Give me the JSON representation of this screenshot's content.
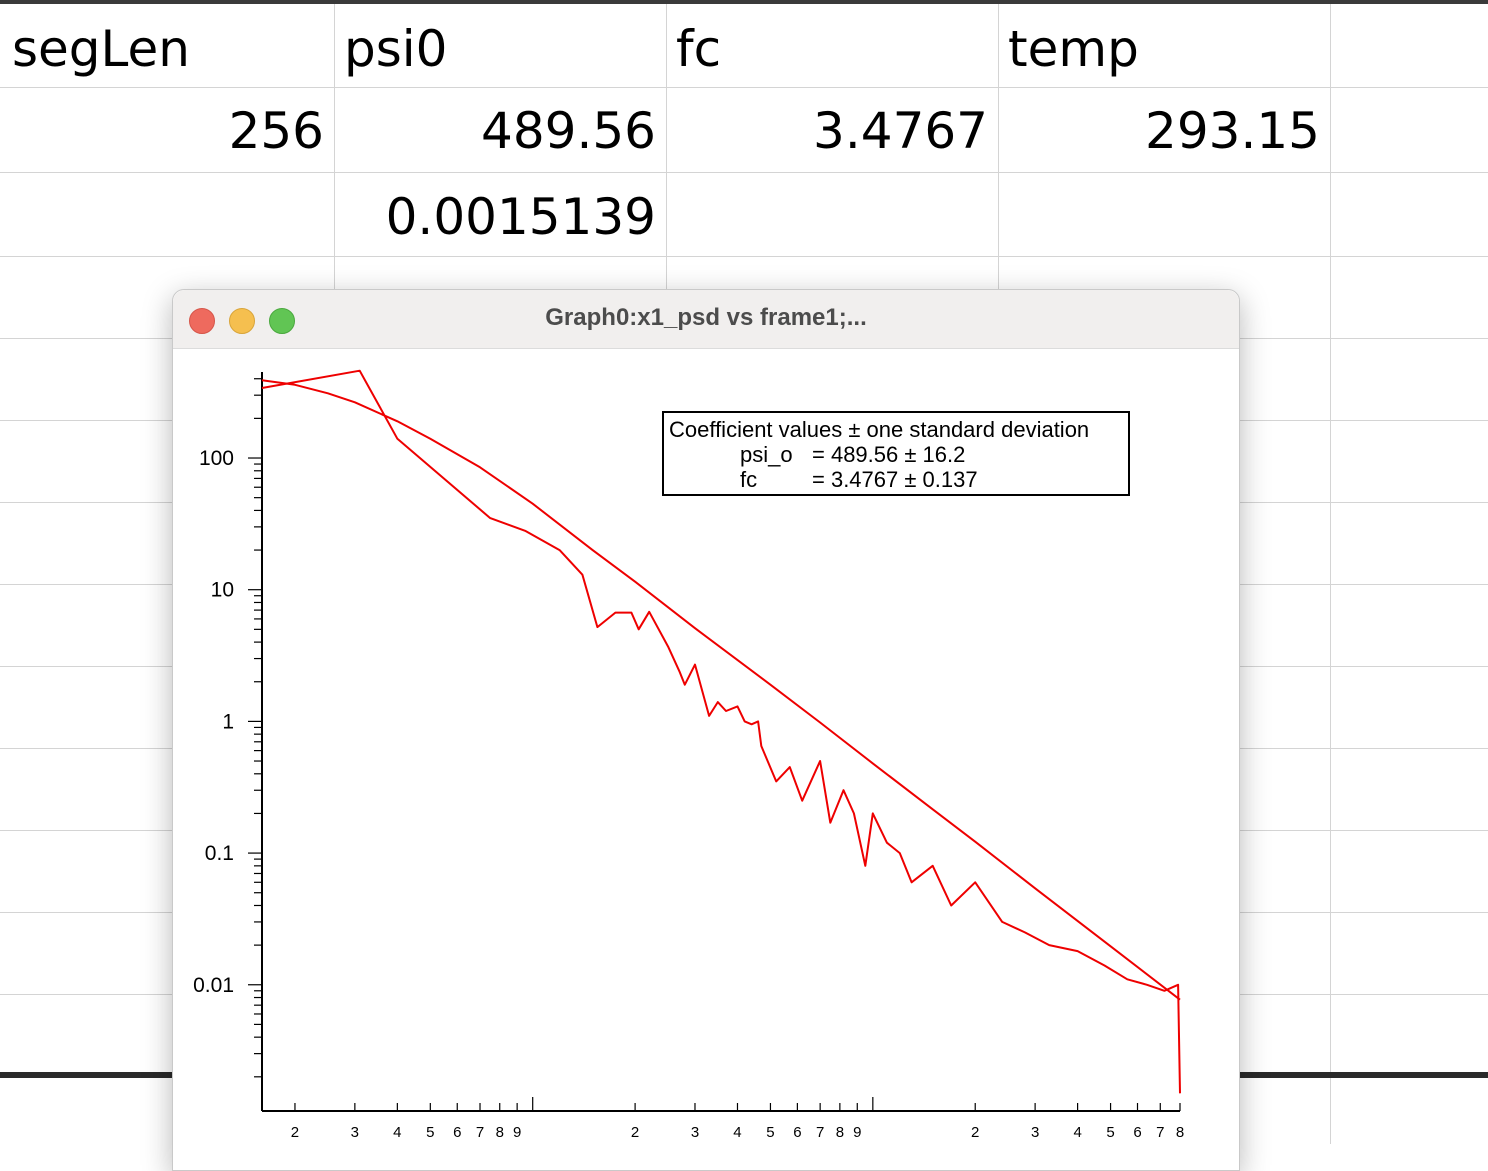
{
  "spreadsheet": {
    "headers": [
      "segLen",
      "psi0",
      "fc",
      "temp"
    ],
    "row1": [
      "256",
      "489.56",
      "3.4767",
      "293.15"
    ],
    "row2": [
      "",
      "0.0015139",
      "",
      ""
    ]
  },
  "window": {
    "title": "Graph0:x1_psd vs frame1;...",
    "buttons": [
      "close",
      "minimize",
      "zoom"
    ]
  },
  "legend": {
    "heading": "Coefficient values ± one standard deviation",
    "rows": [
      {
        "name": "psi_o",
        "value": "= 489.56 ± 16.2"
      },
      {
        "name": "fc",
        "value": "= 3.4767 ± 0.137"
      }
    ]
  },
  "chart_data": {
    "type": "line",
    "title": "",
    "xlabel": "",
    "ylabel": "",
    "xscale": "log",
    "yscale": "log",
    "xlim": [
      1.6,
      800
    ],
    "ylim": [
      0.0011,
      450
    ],
    "y_tick_labels": [
      "100",
      "10",
      "1",
      "0.1",
      "0.01"
    ],
    "x_tick_labels": [
      "2",
      "3",
      "4",
      "5",
      "6",
      "7",
      "8",
      "9",
      "2",
      "3",
      "4",
      "5",
      "6",
      "7",
      "8",
      "9",
      "2",
      "3",
      "4",
      "5",
      "6",
      "7",
      "8"
    ],
    "line_color": "#ee0000",
    "series": [
      {
        "x": [
          1.6,
          3.1,
          4.0,
          7.5,
          9.5,
          12,
          14,
          15.5,
          17.5,
          19.5,
          20.5,
          22,
          25,
          27,
          28,
          30,
          33,
          35,
          37,
          40,
          42,
          44,
          46,
          47,
          52,
          57,
          62,
          70,
          75,
          82,
          88,
          95,
          100,
          110,
          120,
          130,
          150,
          170,
          200,
          240,
          280,
          330,
          400,
          480,
          560,
          640,
          720,
          790,
          800
        ],
        "y": [
          340,
          460,
          140,
          35,
          28,
          20,
          13,
          5.2,
          6.7,
          6.7,
          5.0,
          6.8,
          3.7,
          2.4,
          1.9,
          2.7,
          1.1,
          1.4,
          1.2,
          1.3,
          1.0,
          0.95,
          1.0,
          0.65,
          0.35,
          0.45,
          0.25,
          0.5,
          0.17,
          0.3,
          0.2,
          0.08,
          0.2,
          0.12,
          0.1,
          0.06,
          0.08,
          0.04,
          0.06,
          0.03,
          0.025,
          0.02,
          0.018,
          0.014,
          0.011,
          0.01,
          0.009,
          0.01,
          0.0015
        ]
      },
      {
        "x": [
          1.6,
          2.0,
          2.5,
          3.0,
          4.0,
          5.0,
          7.0,
          10,
          15,
          20,
          30,
          50,
          70,
          100,
          150,
          200,
          300,
          500,
          800
        ],
        "y": [
          390,
          360,
          310,
          265,
          190,
          140,
          85,
          45,
          20,
          11.5,
          5.1,
          1.9,
          0.98,
          0.48,
          0.215,
          0.122,
          0.054,
          0.0196,
          0.0077
        ]
      }
    ]
  }
}
